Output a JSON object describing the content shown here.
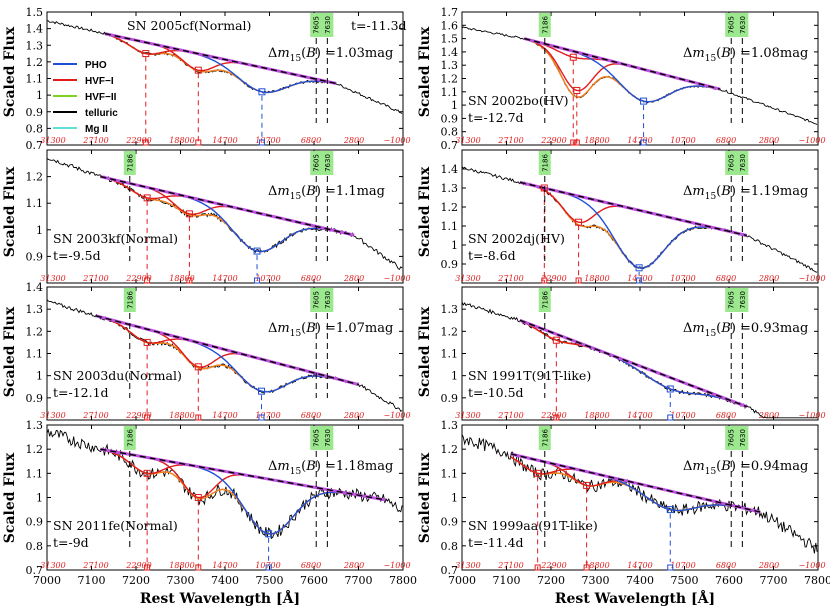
{
  "figure": {
    "ylabel": "Scaled Flux",
    "xlabel": "Rest Wavelength [Å]",
    "x_ticks": [
      7000,
      7100,
      7200,
      7300,
      7400,
      7500,
      7600,
      7700,
      7800
    ],
    "x_tick_labels": [
      "7000",
      "7100",
      "7200",
      "7300",
      "7400",
      "7500",
      "7600",
      "7700",
      "7800"
    ],
    "vel_ticks": [
      "31300",
      "27100",
      "22900",
      "18800",
      "14700",
      "10700",
      "6800",
      "2800",
      "−1000"
    ],
    "telluric_marks": [
      "7186",
      "7605",
      "7630"
    ],
    "legend": [
      {
        "label": "PHO",
        "color": "#1f4fd8"
      },
      {
        "label": "HVF−I",
        "color": "#e01c1c"
      },
      {
        "label": "HVF−II",
        "color": "#7ed321"
      },
      {
        "label": "telluric",
        "color": "#000000"
      },
      {
        "label": "Mg II",
        "color": "#62e0d8"
      }
    ],
    "colors": {
      "pho": "#1f4fd8",
      "hvf1": "#e01c1c",
      "hvf2": "#7ed321",
      "telluric": "#000000",
      "mg": "#62e0d8",
      "fit": "#c050e0",
      "continuum": "#000000",
      "sum": "#f08020",
      "tel_box": "#9be88e"
    }
  },
  "chart_data": [
    {
      "type": "line",
      "name": "SN 2005cf(Normal)",
      "time": "t=-11.3d",
      "dm15": "=1.03mag",
      "ylim": [
        0.7,
        1.5
      ],
      "yticks": [
        0.7,
        0.8,
        0.9,
        1,
        1.1,
        1.2,
        1.3,
        1.4,
        1.5
      ],
      "ytick_labels": [
        "0.7",
        "0.8",
        "0.9",
        "1",
        "1.1",
        "1.2",
        "1.3",
        "1.4",
        "1.5"
      ],
      "continuum": [
        [
          7130,
          1.37
        ],
        [
          7650,
          1.07
        ]
      ],
      "pho_min": [
        7483,
        1.02
      ],
      "hvf1_mins": [
        [
          7222,
          1.25
        ],
        [
          7340,
          1.15
        ]
      ],
      "tellurics": [
        "7605",
        "7630"
      ]
    },
    {
      "type": "line",
      "name": "SN 2002bo(HV)",
      "time": "t=-12.7d",
      "dm15": "=1.08mag",
      "ylim": [
        0.7,
        1.7
      ],
      "yticks": [
        0.7,
        0.8,
        0.9,
        1,
        1.1,
        1.2,
        1.3,
        1.4,
        1.5,
        1.6,
        1.7
      ],
      "ytick_labels": [
        "0.7",
        "0.8",
        "0.9",
        "1",
        "1.1",
        "1.2",
        "1.3",
        "1.4",
        "1.5",
        "1.6",
        "1.7"
      ],
      "continuum": [
        [
          7140,
          1.5
        ],
        [
          7580,
          1.12
        ]
      ],
      "pho_min": [
        7408,
        1.03
      ],
      "hvf1_mins": [
        [
          7250,
          1.36
        ],
        [
          7258,
          1.11
        ]
      ],
      "tellurics": [
        "7186",
        "7605",
        "7630"
      ]
    },
    {
      "type": "line",
      "name": "SN 2003kf(Normal)",
      "time": "t=-9.5d",
      "dm15": "=1.1mag",
      "ylim": [
        0.8,
        1.3
      ],
      "yticks": [
        0.9,
        1,
        1.1,
        1.2
      ],
      "ytick_labels": [
        "0.9",
        "1",
        "1.1",
        "1.2"
      ],
      "continuum": [
        [
          7120,
          1.2
        ],
        [
          7690,
          0.98
        ]
      ],
      "pho_min": [
        7472,
        0.92
      ],
      "hvf1_mins": [
        [
          7225,
          1.12
        ],
        [
          7320,
          1.06
        ]
      ],
      "tellurics": [
        "7186",
        "7605",
        "7630"
      ]
    },
    {
      "type": "line",
      "name": "SN 2002dj(HV)",
      "time": "t=-8.6d",
      "dm15": "=1.19mag",
      "ylim": [
        0.8,
        1.5
      ],
      "yticks": [
        0.9,
        1,
        1.1,
        1.2,
        1.3,
        1.4
      ],
      "ytick_labels": [
        "0.9",
        "1",
        "1.1",
        "1.2",
        "1.3",
        "1.4"
      ],
      "continuum": [
        [
          7130,
          1.33
        ],
        [
          7640,
          1.05
        ]
      ],
      "pho_min": [
        7398,
        0.88
      ],
      "hvf1_mins": [
        [
          7185,
          1.3
        ],
        [
          7262,
          1.12
        ]
      ],
      "tellurics": [
        "7186",
        "7605",
        "7630"
      ]
    },
    {
      "type": "line",
      "name": "SN 2003du(Normal)",
      "time": "t=-12.1d",
      "dm15": "=1.07mag",
      "ylim": [
        0.8,
        1.4
      ],
      "yticks": [
        0.9,
        1,
        1.1,
        1.2,
        1.3,
        1.4
      ],
      "ytick_labels": [
        "0.9",
        "1",
        "1.1",
        "1.2",
        "1.3",
        "1.4"
      ],
      "continuum": [
        [
          7110,
          1.27
        ],
        [
          7700,
          0.96
        ]
      ],
      "pho_min": [
        7482,
        0.93
      ],
      "hvf1_mins": [
        [
          7225,
          1.15
        ],
        [
          7340,
          1.04
        ]
      ],
      "tellurics": [
        "7186",
        "7605",
        "7630"
      ]
    },
    {
      "type": "line",
      "name": "SN 1991T(91T-like)",
      "time": "t=-10.5d",
      "dm15": "=0.93mag",
      "ylim": [
        0.8,
        1.4
      ],
      "yticks": [
        0.9,
        1,
        1.1,
        1.2,
        1.3
      ],
      "ytick_labels": [
        "0.9",
        "1",
        "1.1",
        "1.2",
        "1.3"
      ],
      "continuum": [
        [
          7130,
          1.25
        ],
        [
          7640,
          0.86
        ]
      ],
      "pho_min": [
        7468,
        0.94
      ],
      "hvf1_mins": [
        [
          7212,
          1.16
        ]
      ],
      "tellurics": [
        "7186",
        "7605",
        "7630"
      ]
    },
    {
      "type": "line",
      "name": "SN 2011fe(Normal)",
      "time": "t=-9d",
      "dm15": "=1.18mag",
      "ylim": [
        0.7,
        1.3
      ],
      "yticks": [
        0.7,
        0.8,
        0.9,
        1,
        1.1,
        1.2,
        1.3
      ],
      "ytick_labels": [
        "0.7",
        "0.8",
        "0.9",
        "1",
        "1.1",
        "1.2",
        "1.3"
      ],
      "continuum": [
        [
          7120,
          1.2
        ],
        [
          7760,
          0.99
        ]
      ],
      "pho_min": [
        7498,
        0.85
      ],
      "hvf1_mins": [
        [
          7225,
          1.1
        ],
        [
          7340,
          1.0
        ]
      ],
      "tellurics": [
        "7186",
        "7605",
        "7630"
      ]
    },
    {
      "type": "line",
      "name": "SN 1999aa(91T-like)",
      "time": "t=-11.4d",
      "dm15": "=0.94mag",
      "ylim": [
        0.7,
        1.3
      ],
      "yticks": [
        0.7,
        0.8,
        0.9,
        1,
        1.1,
        1.2,
        1.3
      ],
      "ytick_labels": [
        "0.7",
        "0.8",
        "0.9",
        "1",
        "1.1",
        "1.2",
        "1.3"
      ],
      "continuum": [
        [
          7110,
          1.18
        ],
        [
          7670,
          0.94
        ]
      ],
      "pho_min": [
        7468,
        0.95
      ],
      "hvf1_mins": [
        [
          7170,
          1.1
        ],
        [
          7280,
          1.05
        ]
      ],
      "tellurics": [
        "7186",
        "7605",
        "7630"
      ]
    }
  ]
}
